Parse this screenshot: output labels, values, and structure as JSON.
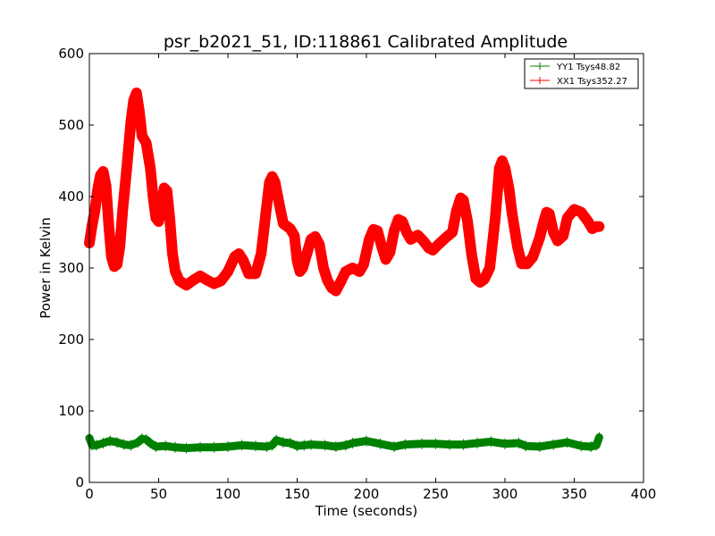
{
  "chart_data": {
    "type": "line",
    "title": "psr_b2021_51, ID:118861 Calibrated Amplitude",
    "xlabel": "Time (seconds)",
    "ylabel": "Power in Kelvin",
    "xlim": [
      0,
      400
    ],
    "ylim": [
      0,
      600
    ],
    "xticks": [
      0,
      50,
      100,
      150,
      200,
      250,
      300,
      350,
      400
    ],
    "yticks": [
      0,
      100,
      200,
      300,
      400,
      500,
      600
    ],
    "grid": false,
    "legend_position": "top-right",
    "series": [
      {
        "name": "YY1 Tsys48.82",
        "color": "#008000",
        "points": [
          [
            0,
            62
          ],
          [
            2,
            52
          ],
          [
            5,
            52
          ],
          [
            10,
            55
          ],
          [
            15,
            58
          ],
          [
            20,
            56
          ],
          [
            25,
            53
          ],
          [
            30,
            52
          ],
          [
            35,
            56
          ],
          [
            38,
            61
          ],
          [
            41,
            60
          ],
          [
            44,
            55
          ],
          [
            48,
            50
          ],
          [
            55,
            51
          ],
          [
            62,
            49
          ],
          [
            70,
            48
          ],
          [
            80,
            49
          ],
          [
            90,
            49
          ],
          [
            100,
            50
          ],
          [
            110,
            52
          ],
          [
            120,
            51
          ],
          [
            128,
            50
          ],
          [
            132,
            52
          ],
          [
            135,
            59
          ],
          [
            140,
            56
          ],
          [
            145,
            55
          ],
          [
            150,
            51
          ],
          [
            155,
            52
          ],
          [
            160,
            53
          ],
          [
            170,
            52
          ],
          [
            178,
            50
          ],
          [
            185,
            52
          ],
          [
            190,
            55
          ],
          [
            200,
            58
          ],
          [
            210,
            54
          ],
          [
            220,
            50
          ],
          [
            228,
            53
          ],
          [
            240,
            54
          ],
          [
            250,
            54
          ],
          [
            260,
            53
          ],
          [
            270,
            53
          ],
          [
            280,
            55
          ],
          [
            290,
            57
          ],
          [
            300,
            54
          ],
          [
            310,
            55
          ],
          [
            315,
            51
          ],
          [
            325,
            50
          ],
          [
            335,
            53
          ],
          [
            345,
            56
          ],
          [
            355,
            51
          ],
          [
            362,
            50
          ],
          [
            366,
            52
          ],
          [
            368,
            63
          ]
        ]
      },
      {
        "name": "XX1 Tsys352.27",
        "color": "#ff0000",
        "points": [
          [
            0,
            335
          ],
          [
            2,
            360
          ],
          [
            4,
            380
          ],
          [
            6,
            410
          ],
          [
            8,
            430
          ],
          [
            10,
            435
          ],
          [
            12,
            415
          ],
          [
            14,
            360
          ],
          [
            16,
            315
          ],
          [
            18,
            302
          ],
          [
            20,
            305
          ],
          [
            22,
            330
          ],
          [
            24,
            380
          ],
          [
            27,
            440
          ],
          [
            30,
            505
          ],
          [
            32,
            535
          ],
          [
            34,
            545
          ],
          [
            36,
            520
          ],
          [
            38,
            485
          ],
          [
            41,
            475
          ],
          [
            44,
            440
          ],
          [
            46,
            400
          ],
          [
            48,
            370
          ],
          [
            50,
            365
          ],
          [
            52,
            385
          ],
          [
            54,
            412
          ],
          [
            56,
            408
          ],
          [
            58,
            370
          ],
          [
            60,
            320
          ],
          [
            62,
            295
          ],
          [
            65,
            282
          ],
          [
            70,
            276
          ],
          [
            75,
            283
          ],
          [
            80,
            289
          ],
          [
            85,
            283
          ],
          [
            90,
            278
          ],
          [
            95,
            282
          ],
          [
            100,
            295
          ],
          [
            105,
            316
          ],
          [
            108,
            320
          ],
          [
            111,
            311
          ],
          [
            115,
            292
          ],
          [
            120,
            292
          ],
          [
            124,
            320
          ],
          [
            127,
            370
          ],
          [
            130,
            420
          ],
          [
            132,
            428
          ],
          [
            134,
            420
          ],
          [
            137,
            390
          ],
          [
            140,
            362
          ],
          [
            145,
            355
          ],
          [
            148,
            345
          ],
          [
            150,
            310
          ],
          [
            152,
            295
          ],
          [
            154,
            300
          ],
          [
            157,
            320
          ],
          [
            160,
            340
          ],
          [
            163,
            344
          ],
          [
            166,
            333
          ],
          [
            169,
            300
          ],
          [
            172,
            282
          ],
          [
            175,
            272
          ],
          [
            178,
            268
          ],
          [
            182,
            283
          ],
          [
            185,
            295
          ],
          [
            190,
            300
          ],
          [
            195,
            295
          ],
          [
            198,
            305
          ],
          [
            202,
            340
          ],
          [
            205,
            354
          ],
          [
            208,
            352
          ],
          [
            211,
            330
          ],
          [
            214,
            312
          ],
          [
            217,
            322
          ],
          [
            220,
            352
          ],
          [
            223,
            368
          ],
          [
            226,
            365
          ],
          [
            229,
            350
          ],
          [
            232,
            340
          ],
          [
            237,
            346
          ],
          [
            241,
            338
          ],
          [
            245,
            328
          ],
          [
            248,
            325
          ],
          [
            252,
            333
          ],
          [
            257,
            342
          ],
          [
            262,
            350
          ],
          [
            265,
            380
          ],
          [
            268,
            398
          ],
          [
            270,
            395
          ],
          [
            273,
            365
          ],
          [
            276,
            318
          ],
          [
            279,
            285
          ],
          [
            282,
            280
          ],
          [
            285,
            284
          ],
          [
            289,
            300
          ],
          [
            293,
            370
          ],
          [
            296,
            440
          ],
          [
            298,
            450
          ],
          [
            300,
            440
          ],
          [
            303,
            410
          ],
          [
            305,
            378
          ],
          [
            309,
            330
          ],
          [
            312,
            306
          ],
          [
            316,
            306
          ],
          [
            320,
            315
          ],
          [
            325,
            342
          ],
          [
            328,
            365
          ],
          [
            330,
            378
          ],
          [
            332,
            376
          ],
          [
            335,
            350
          ],
          [
            338,
            338
          ],
          [
            342,
            345
          ],
          [
            345,
            370
          ],
          [
            350,
            382
          ],
          [
            355,
            378
          ],
          [
            360,
            365
          ],
          [
            363,
            355
          ],
          [
            366,
            358
          ],
          [
            368,
            358
          ]
        ]
      }
    ]
  }
}
